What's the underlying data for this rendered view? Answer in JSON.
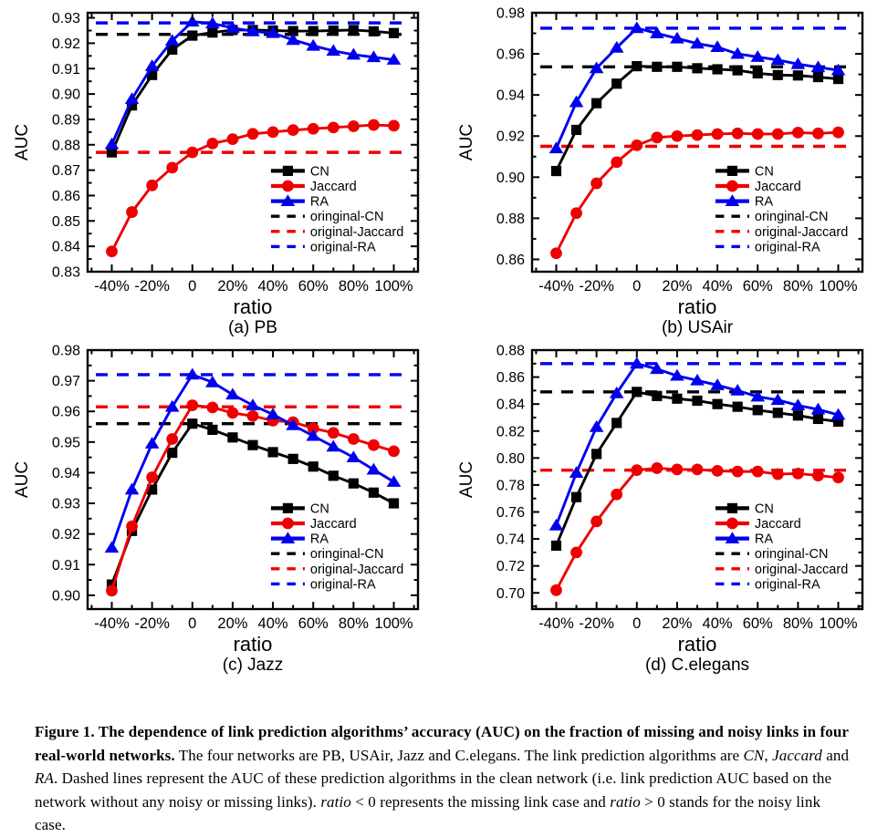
{
  "page": {
    "background": "#ffffff"
  },
  "colors": {
    "cn": "#000000",
    "jaccard": "#ee0000",
    "ra": "#0000ee"
  },
  "chart_data": [
    {
      "id": "a",
      "type": "line",
      "title": "(a) PB",
      "xlabel": "ratio",
      "ylabel": "AUC",
      "xlim": [
        -52,
        112
      ],
      "ylim": [
        0.83,
        0.932
      ],
      "xticks": [
        {
          "v": -40,
          "label": "-40%"
        },
        {
          "v": -20,
          "label": "-20%"
        },
        {
          "v": 0,
          "label": "0"
        },
        {
          "v": 20,
          "label": "20%"
        },
        {
          "v": 40,
          "label": "40%"
        },
        {
          "v": 60,
          "label": "60%"
        },
        {
          "v": 80,
          "label": "80%"
        },
        {
          "v": 100,
          "label": "100%"
        }
      ],
      "yticks": [
        0.83,
        0.84,
        0.85,
        0.86,
        0.87,
        0.88,
        0.89,
        0.9,
        0.91,
        0.92,
        0.93
      ],
      "grid": false,
      "legend_position": "right-center",
      "x": [
        -40,
        -30,
        -20,
        -10,
        0,
        10,
        20,
        30,
        40,
        50,
        60,
        70,
        80,
        90,
        100
      ],
      "series": [
        {
          "name": "CN",
          "marker": "square",
          "color": "#000000",
          "values": [
            0.877,
            0.8955,
            0.9075,
            0.9175,
            0.923,
            0.9242,
            0.9252,
            0.9252,
            0.925,
            0.9248,
            0.9248,
            0.925,
            0.9252,
            0.9247,
            0.924
          ]
        },
        {
          "name": "Jaccard",
          "marker": "circle",
          "color": "#ee0000",
          "values": [
            0.838,
            0.8535,
            0.864,
            0.871,
            0.877,
            0.8805,
            0.8822,
            0.8843,
            0.885,
            0.8858,
            0.8863,
            0.8868,
            0.8873,
            0.8878,
            0.8875
          ]
        },
        {
          "name": "RA",
          "marker": "triangle",
          "color": "#0000ee",
          "values": [
            0.8802,
            0.898,
            0.911,
            0.921,
            0.9285,
            0.9278,
            0.926,
            0.9247,
            0.924,
            0.9213,
            0.919,
            0.917,
            0.9155,
            0.9145,
            0.9135
          ]
        }
      ],
      "baselines": [
        {
          "name": "oringinal-CN",
          "color": "#000000",
          "value": 0.9235
        },
        {
          "name": "original-Jaccard",
          "color": "#ee0000",
          "value": 0.877
        },
        {
          "name": "original-RA",
          "color": "#0000ee",
          "value": 0.928
        }
      ]
    },
    {
      "id": "b",
      "type": "line",
      "title": "(b) USAir",
      "xlabel": "ratio",
      "ylabel": "AUC",
      "xlim": [
        -52,
        112
      ],
      "ylim": [
        0.854,
        0.98
      ],
      "xticks": [
        {
          "v": -40,
          "label": "-40%"
        },
        {
          "v": -20,
          "label": "-20%"
        },
        {
          "v": 0,
          "label": "0"
        },
        {
          "v": 20,
          "label": "20%"
        },
        {
          "v": 40,
          "label": "40%"
        },
        {
          "v": 60,
          "label": "60%"
        },
        {
          "v": 80,
          "label": "80%"
        },
        {
          "v": 100,
          "label": "100%"
        }
      ],
      "yticks": [
        0.86,
        0.88,
        0.9,
        0.92,
        0.94,
        0.96,
        0.98
      ],
      "grid": false,
      "legend_position": "right-center",
      "x": [
        -40,
        -30,
        -20,
        -10,
        0,
        10,
        20,
        30,
        40,
        50,
        60,
        70,
        80,
        90,
        100
      ],
      "series": [
        {
          "name": "CN",
          "marker": "square",
          "color": "#000000",
          "values": [
            0.903,
            0.923,
            0.936,
            0.9455,
            0.954,
            0.9537,
            0.9537,
            0.953,
            0.9525,
            0.952,
            0.9505,
            0.9497,
            0.9495,
            0.9487,
            0.9478
          ]
        },
        {
          "name": "Jaccard",
          "marker": "circle",
          "color": "#ee0000",
          "values": [
            0.863,
            0.8825,
            0.897,
            0.9073,
            0.9155,
            0.9193,
            0.92,
            0.9205,
            0.921,
            0.9213,
            0.921,
            0.921,
            0.9217,
            0.9213,
            0.9218
          ]
        },
        {
          "name": "RA",
          "marker": "triangle",
          "color": "#0000ee",
          "values": [
            0.914,
            0.9365,
            0.953,
            0.963,
            0.9725,
            0.97,
            0.9675,
            0.965,
            0.9633,
            0.96,
            0.9585,
            0.957,
            0.955,
            0.9535,
            0.952
          ]
        }
      ],
      "baselines": [
        {
          "name": "oringinal-CN",
          "color": "#000000",
          "value": 0.9537
        },
        {
          "name": "original-Jaccard",
          "color": "#ee0000",
          "value": 0.915
        },
        {
          "name": "original-RA",
          "color": "#0000ee",
          "value": 0.9725
        }
      ]
    },
    {
      "id": "c",
      "type": "line",
      "title": "(c) Jazz",
      "xlabel": "ratio",
      "ylabel": "AUC",
      "xlim": [
        -52,
        112
      ],
      "ylim": [
        0.8955,
        0.98
      ],
      "xticks": [
        {
          "v": -40,
          "label": "-40%"
        },
        {
          "v": -20,
          "label": "-20%"
        },
        {
          "v": 0,
          "label": "0"
        },
        {
          "v": 20,
          "label": "20%"
        },
        {
          "v": 40,
          "label": "40%"
        },
        {
          "v": 60,
          "label": "60%"
        },
        {
          "v": 80,
          "label": "80%"
        },
        {
          "v": 100,
          "label": "100%"
        }
      ],
      "yticks": [
        0.9,
        0.91,
        0.92,
        0.93,
        0.94,
        0.95,
        0.96,
        0.97,
        0.98
      ],
      "grid": false,
      "legend_position": "right-center",
      "x": [
        -40,
        -30,
        -20,
        -10,
        0,
        10,
        20,
        30,
        40,
        50,
        60,
        70,
        80,
        90,
        100
      ],
      "series": [
        {
          "name": "CN",
          "marker": "square",
          "color": "#000000",
          "values": [
            0.9035,
            0.921,
            0.9345,
            0.9465,
            0.956,
            0.954,
            0.9515,
            0.949,
            0.9467,
            0.9445,
            0.942,
            0.939,
            0.9365,
            0.9335,
            0.93
          ]
        },
        {
          "name": "Jaccard",
          "marker": "circle",
          "color": "#ee0000",
          "values": [
            0.9015,
            0.9225,
            0.9385,
            0.951,
            0.962,
            0.9613,
            0.9595,
            0.9585,
            0.957,
            0.9565,
            0.9545,
            0.953,
            0.951,
            0.949,
            0.947
          ]
        },
        {
          "name": "RA",
          "marker": "triangle",
          "color": "#0000ee",
          "values": [
            0.9155,
            0.9345,
            0.9495,
            0.9615,
            0.972,
            0.9695,
            0.9655,
            0.962,
            0.959,
            0.9555,
            0.952,
            0.9485,
            0.945,
            0.941,
            0.937
          ]
        }
      ],
      "baselines": [
        {
          "name": "oringinal-CN",
          "color": "#000000",
          "value": 0.956
        },
        {
          "name": "original-Jaccard",
          "color": "#ee0000",
          "value": 0.9615
        },
        {
          "name": "original-RA",
          "color": "#0000ee",
          "value": 0.972
        }
      ]
    },
    {
      "id": "d",
      "type": "line",
      "title": "(d) C.elegans",
      "xlabel": "ratio",
      "ylabel": "AUC",
      "xlim": [
        -52,
        112
      ],
      "ylim": [
        0.688,
        0.88
      ],
      "xticks": [
        {
          "v": -40,
          "label": "-40%"
        },
        {
          "v": -20,
          "label": "-20%"
        },
        {
          "v": 0,
          "label": "0"
        },
        {
          "v": 20,
          "label": "20%"
        },
        {
          "v": 40,
          "label": "40%"
        },
        {
          "v": 60,
          "label": "60%"
        },
        {
          "v": 80,
          "label": "80%"
        },
        {
          "v": 100,
          "label": "100%"
        }
      ],
      "yticks": [
        0.7,
        0.72,
        0.74,
        0.76,
        0.78,
        0.8,
        0.82,
        0.84,
        0.86,
        0.88
      ],
      "grid": false,
      "legend_position": "right-center",
      "x": [
        -40,
        -30,
        -20,
        -10,
        0,
        10,
        20,
        30,
        40,
        50,
        60,
        70,
        80,
        90,
        100
      ],
      "series": [
        {
          "name": "CN",
          "marker": "square",
          "color": "#000000",
          "values": [
            0.735,
            0.771,
            0.803,
            0.826,
            0.849,
            0.846,
            0.844,
            0.8425,
            0.84,
            0.838,
            0.8355,
            0.8335,
            0.8315,
            0.829,
            0.827
          ]
        },
        {
          "name": "Jaccard",
          "marker": "circle",
          "color": "#ee0000",
          "values": [
            0.702,
            0.73,
            0.753,
            0.773,
            0.791,
            0.7925,
            0.7915,
            0.7915,
            0.7905,
            0.79,
            0.79,
            0.788,
            0.7885,
            0.787,
            0.7855
          ]
        },
        {
          "name": "RA",
          "marker": "triangle",
          "color": "#0000ee",
          "values": [
            0.75,
            0.789,
            0.823,
            0.848,
            0.87,
            0.866,
            0.861,
            0.8575,
            0.854,
            0.85,
            0.8455,
            0.843,
            0.839,
            0.836,
            0.832
          ]
        }
      ],
      "baselines": [
        {
          "name": "oringinal-CN",
          "color": "#000000",
          "value": 0.849
        },
        {
          "name": "original-Jaccard",
          "color": "#ee0000",
          "value": 0.791
        },
        {
          "name": "original-RA",
          "color": "#0000ee",
          "value": 0.87
        }
      ]
    }
  ],
  "caption": {
    "segments": [
      {
        "text": "Figure 1.  The dependence of link prediction algorithms’ accuracy (AUC) on the fraction of missing and noisy links in four real-world networks.",
        "bold": true
      },
      {
        "text": " The four networks are PB, USAir, Jazz and C.elegans. The link prediction algorithms are "
      },
      {
        "text": "CN",
        "italic": true
      },
      {
        "text": ", "
      },
      {
        "text": "Jaccard",
        "italic": true
      },
      {
        "text": " and "
      },
      {
        "text": "RA",
        "italic": true
      },
      {
        "text": ". Dashed lines represent the AUC of these prediction algorithms in the clean network (i.e. link prediction AUC based on the network without any noisy or missing links). "
      },
      {
        "text": "ratio",
        "italic": true
      },
      {
        "text": " < 0 represents the missing link case and "
      },
      {
        "text": "ratio",
        "italic": true
      },
      {
        "text": " > 0 stands for the noisy link case."
      }
    ]
  }
}
